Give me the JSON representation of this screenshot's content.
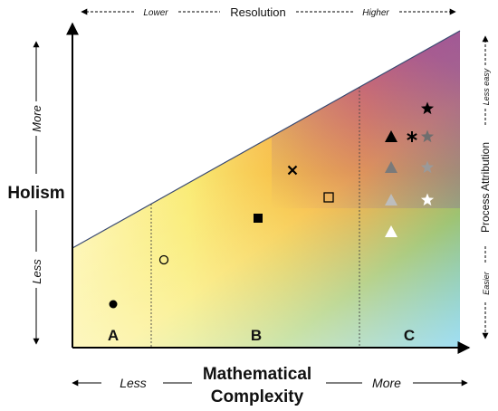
{
  "top_axis": {
    "title": "Resolution",
    "left": "Lower",
    "right": "Higher"
  },
  "left_axis": {
    "title": "Holism",
    "top": "More",
    "bottom": "Less"
  },
  "right_axis": {
    "title": "Process Attribution",
    "top": "Less easy",
    "bottom": "Easier"
  },
  "bottom_axis": {
    "title_line1": "Mathematical",
    "title_line2": "Complexity",
    "left": "Less",
    "right": "More"
  },
  "zones": [
    "A",
    "B",
    "C"
  ],
  "markers": [
    {
      "name": "filled-circle-marker",
      "shape": "circle-filled",
      "color": "#000000"
    },
    {
      "name": "open-circle-marker",
      "shape": "circle-open",
      "color": "#000000"
    },
    {
      "name": "filled-square-marker",
      "shape": "square-filled",
      "color": "#000000"
    },
    {
      "name": "open-square-marker",
      "shape": "square-open",
      "color": "#000000"
    },
    {
      "name": "cross-marker",
      "shape": "cross",
      "color": "#000000"
    },
    {
      "name": "triangle-black-marker",
      "shape": "triangle",
      "color": "#000000"
    },
    {
      "name": "triangle-dark-gray-marker",
      "shape": "triangle",
      "color": "#7a7a7a"
    },
    {
      "name": "triangle-light-gray-marker",
      "shape": "triangle",
      "color": "#bdbdbd"
    },
    {
      "name": "triangle-white-marker",
      "shape": "triangle",
      "color": "#ffffff"
    },
    {
      "name": "asterisk-marker",
      "shape": "asterisk",
      "color": "#000000"
    },
    {
      "name": "star-black-marker",
      "shape": "star",
      "color": "#000000"
    },
    {
      "name": "star-dark-gray-marker",
      "shape": "star",
      "color": "#6e6e6e"
    },
    {
      "name": "star-gray-marker",
      "shape": "star",
      "color": "#9a9a9a"
    },
    {
      "name": "star-white-marker",
      "shape": "star",
      "color": "#ffffff"
    }
  ]
}
